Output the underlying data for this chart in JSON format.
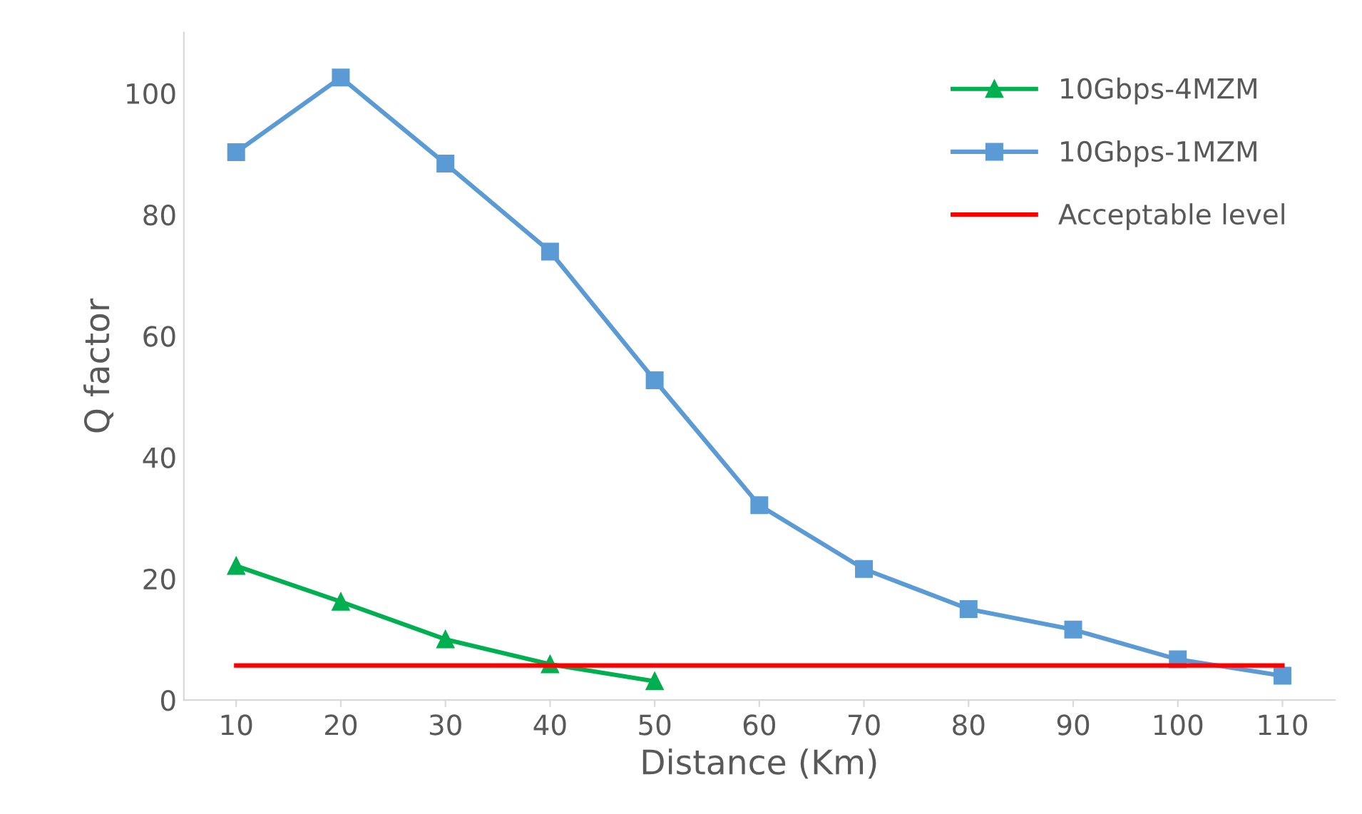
{
  "chart_data": {
    "type": "line",
    "xlabel": "Distance (Km)",
    "ylabel": "Q factor",
    "categories": [
      "10",
      "20",
      "30",
      "40",
      "50",
      "60",
      "70",
      "80",
      "90",
      "100",
      "110"
    ],
    "ylim": [
      0,
      110
    ],
    "yticks": [
      0,
      20,
      40,
      60,
      80,
      100
    ],
    "grid": false,
    "legend": "top right",
    "series": [
      {
        "name": "10Gbps-4MZM",
        "color": "#00b050",
        "marker": "triangle",
        "values": [
          22.1,
          16.2,
          10.0,
          5.9,
          3.1,
          null,
          null,
          null,
          null,
          null,
          null
        ]
      },
      {
        "name": "10Gbps-1MZM",
        "color": "#5b9bd5",
        "marker": "square",
        "values": [
          90.3,
          102.6,
          88.4,
          73.9,
          52.7,
          32.1,
          21.6,
          15.0,
          11.6,
          6.7,
          4.0
        ]
      },
      {
        "name": "Acceptable level",
        "color": "#ff0000",
        "marker": "none",
        "values": [
          5.7,
          5.7,
          5.7,
          5.7,
          5.7,
          5.7,
          5.7,
          5.7,
          5.7,
          5.7,
          5.7
        ]
      }
    ]
  }
}
